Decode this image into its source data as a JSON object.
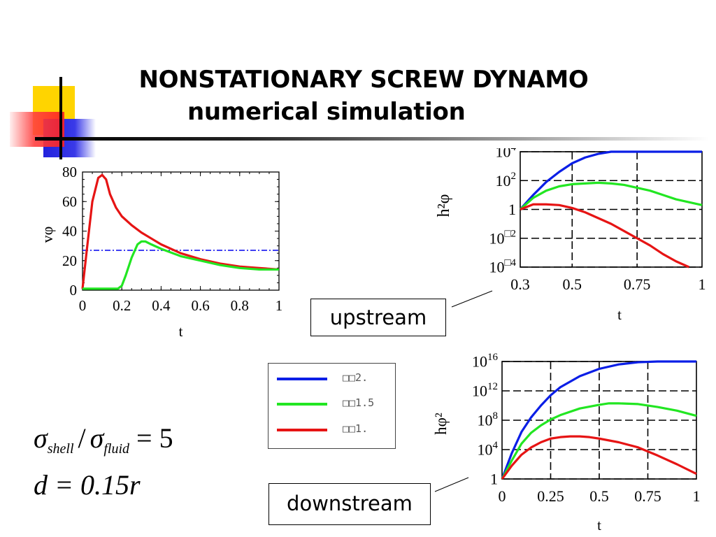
{
  "slide": {
    "title_line1": "NONSTATIONARY SCREW DYNAMO",
    "title_line2": "numerical simulation",
    "callout_upstream": "upstream",
    "callout_downstream": "downstream",
    "legend": [
      {
        "label": "□□2.",
        "color": "#0a1ee6"
      },
      {
        "label": "□□1.5",
        "color": "#22e622"
      },
      {
        "label": "□□1.",
        "color": "#e61414"
      }
    ],
    "formula1": {
      "sigma1": "σ",
      "sub1": "shell",
      "slash": "/",
      "sigma2": "σ",
      "sub2": "fluid",
      "rhs": "= 5"
    },
    "formula2": {
      "text": "d = 0.15r"
    }
  },
  "chart_data": [
    {
      "type": "line",
      "xlabel": "t",
      "ylabel": "vφ",
      "xlim": [
        0,
        1
      ],
      "ylim": [
        0,
        80
      ],
      "xticks": [
        "0",
        "0.2",
        "0.4",
        "0.6",
        "0.8",
        "1"
      ],
      "yticks": [
        "0",
        "20",
        "40",
        "60",
        "80"
      ],
      "reference_line": {
        "y": 27,
        "style": "dash-dot",
        "color": "#0000ee"
      },
      "series": [
        {
          "color": "#e61414",
          "x": [
            0,
            0.02,
            0.05,
            0.08,
            0.1,
            0.12,
            0.14,
            0.17,
            0.2,
            0.25,
            0.3,
            0.35,
            0.4,
            0.5,
            0.6,
            0.7,
            0.8,
            0.9,
            1.0
          ],
          "y": [
            1,
            25,
            60,
            76,
            78,
            75,
            65,
            56,
            50,
            44,
            39,
            35,
            31,
            25,
            21,
            18,
            16,
            15,
            14
          ]
        },
        {
          "color": "#22e622",
          "x": [
            0,
            0.1,
            0.18,
            0.2,
            0.22,
            0.25,
            0.28,
            0.3,
            0.32,
            0.35,
            0.4,
            0.5,
            0.6,
            0.7,
            0.8,
            0.9,
            1.0
          ],
          "y": [
            1,
            1,
            1,
            3,
            10,
            22,
            31,
            33,
            33,
            31,
            28,
            23,
            20,
            17,
            15,
            14,
            14
          ]
        }
      ]
    },
    {
      "type": "line",
      "panel_label": "upstream",
      "xlabel": "t",
      "ylabel": "h²φ",
      "xlim": [
        0.3,
        1
      ],
      "ylim": [
        -4,
        4
      ],
      "y_scale": "log10",
      "grid": "dashed",
      "xticks": [
        "0.3",
        "0.5",
        "0.75",
        "1"
      ],
      "xtick_values": [
        0.3,
        0.5,
        0.75,
        1
      ],
      "ytick_labels": [
        {
          "v": 4,
          "base": "10",
          "sup": "4"
        },
        {
          "v": 2,
          "base": "10",
          "sup": "2"
        },
        {
          "v": 0,
          "base": "1",
          "sup": ""
        },
        {
          "v": -2,
          "base": "10",
          "sup": "□2"
        },
        {
          "v": -4,
          "base": "10",
          "sup": "□4"
        }
      ],
      "series": [
        {
          "color": "#0a1ee6",
          "x": [
            0.3,
            0.35,
            0.4,
            0.45,
            0.5,
            0.55,
            0.6,
            0.65,
            0.7,
            0.75,
            0.8,
            0.9,
            1.0
          ],
          "y_log10": [
            0,
            1.0,
            1.9,
            2.6,
            3.2,
            3.6,
            3.85,
            4.0,
            4.1,
            4.15,
            4.2,
            4.2,
            4.2
          ]
        },
        {
          "color": "#22e622",
          "x": [
            0.3,
            0.35,
            0.4,
            0.45,
            0.5,
            0.55,
            0.6,
            0.65,
            0.7,
            0.75,
            0.8,
            0.85,
            0.9,
            0.95,
            1.0
          ],
          "y_log10": [
            0,
            0.8,
            1.3,
            1.6,
            1.75,
            1.8,
            1.85,
            1.8,
            1.7,
            1.5,
            1.3,
            1.0,
            0.7,
            0.5,
            0.3
          ]
        },
        {
          "color": "#e61414",
          "x": [
            0.3,
            0.35,
            0.4,
            0.45,
            0.5,
            0.55,
            0.6,
            0.65,
            0.7,
            0.75,
            0.8,
            0.85,
            0.9,
            0.95
          ],
          "y_log10": [
            0,
            0.35,
            0.35,
            0.3,
            0.1,
            -0.2,
            -0.6,
            -1.0,
            -1.5,
            -2.0,
            -2.5,
            -3.1,
            -3.6,
            -4.0
          ]
        }
      ]
    },
    {
      "type": "line",
      "panel_label": "downstream",
      "xlabel": "t",
      "ylabel": "hφ²",
      "xlim": [
        0,
        1
      ],
      "ylim": [
        0,
        16
      ],
      "y_scale": "log10",
      "grid": "dashed",
      "xticks": [
        "0",
        "0.25",
        "0.5",
        "0.75",
        "1"
      ],
      "xtick_values": [
        0,
        0.25,
        0.5,
        0.75,
        1
      ],
      "ytick_labels": [
        {
          "v": 16,
          "base": "10",
          "sup": "16"
        },
        {
          "v": 12,
          "base": "10",
          "sup": "12"
        },
        {
          "v": 8,
          "base": "10",
          "sup": "8"
        },
        {
          "v": 4,
          "base": "10",
          "sup": "4"
        },
        {
          "v": 0,
          "base": "1",
          "sup": ""
        }
      ],
      "series": [
        {
          "color": "#0a1ee6",
          "x": [
            0,
            0.05,
            0.1,
            0.15,
            0.2,
            0.25,
            0.3,
            0.4,
            0.5,
            0.6,
            0.7,
            0.8,
            0.9,
            1.0
          ],
          "y_log10": [
            0,
            3.5,
            6.4,
            8.4,
            10.0,
            11.4,
            12.5,
            14.0,
            15.0,
            15.6,
            15.9,
            16.0,
            16.0,
            16.0
          ]
        },
        {
          "color": "#22e622",
          "x": [
            0,
            0.05,
            0.1,
            0.15,
            0.2,
            0.25,
            0.3,
            0.4,
            0.5,
            0.55,
            0.6,
            0.7,
            0.8,
            0.9,
            1.0
          ],
          "y_log10": [
            0,
            2.5,
            4.8,
            6.3,
            7.3,
            8.1,
            8.7,
            9.6,
            10.1,
            10.3,
            10.3,
            10.2,
            9.8,
            9.3,
            8.6
          ]
        },
        {
          "color": "#e61414",
          "x": [
            0,
            0.05,
            0.1,
            0.15,
            0.2,
            0.25,
            0.3,
            0.35,
            0.4,
            0.45,
            0.5,
            0.6,
            0.7,
            0.8,
            0.9,
            1.0
          ],
          "y_log10": [
            0,
            1.8,
            3.3,
            4.3,
            5.0,
            5.5,
            5.7,
            5.8,
            5.8,
            5.7,
            5.5,
            5.0,
            4.3,
            3.2,
            2.0,
            0.7
          ]
        }
      ]
    }
  ]
}
